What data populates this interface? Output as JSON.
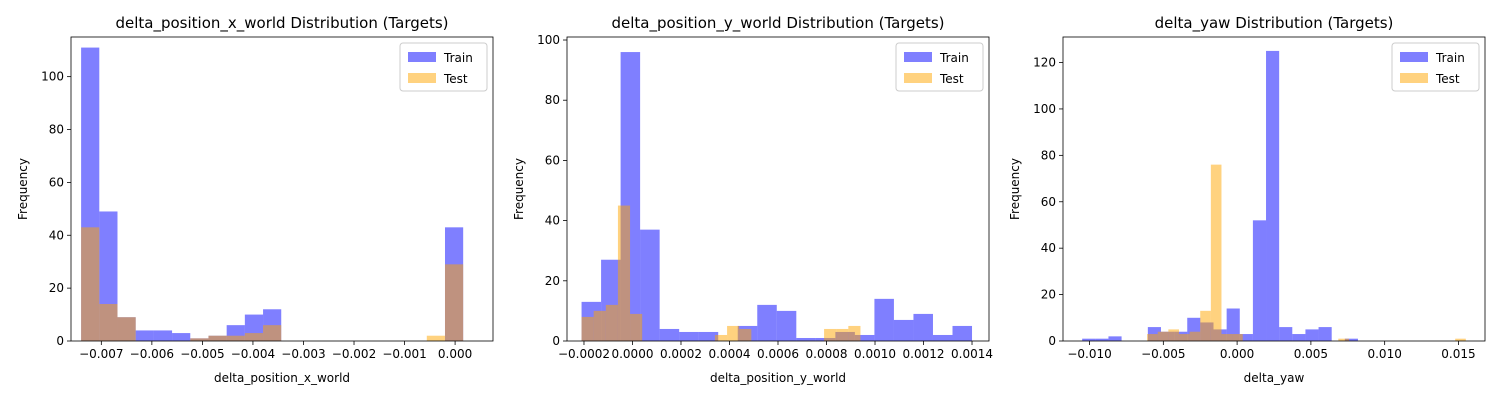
{
  "chart_data": [
    {
      "type": "bar",
      "title": "delta_position_x_world Distribution (Targets)",
      "xlabel": "delta_position_x_world",
      "ylabel": "Frequency",
      "xlim": [
        -0.0076,
        0.00075
      ],
      "ylim": [
        0,
        115
      ],
      "xticks": [
        -0.007,
        -0.006,
        -0.005,
        -0.004,
        -0.003,
        -0.002,
        -0.001,
        0.0
      ],
      "xtick_labels": [
        "−0.007",
        "−0.006",
        "−0.005",
        "−0.004",
        "−0.003",
        "−0.002",
        "−0.001",
        "0.000"
      ],
      "yticks": [
        0,
        20,
        40,
        60,
        80,
        100
      ],
      "ytick_labels": [
        "0",
        "20",
        "40",
        "60",
        "80",
        "100"
      ],
      "legend": "top-right",
      "series": [
        {
          "name": "Train",
          "color": "#0000ff",
          "alpha": 0.5,
          "bin_start": -0.0074,
          "bin_width": 0.00036,
          "values": [
            111,
            49,
            9,
            4,
            4,
            3,
            1,
            2,
            6,
            10,
            12,
            0,
            0,
            0,
            0,
            0,
            0,
            0,
            0,
            0,
            43
          ]
        },
        {
          "name": "Test",
          "color": "#ffa500",
          "alpha": 0.5,
          "bin_start": -0.0074,
          "bin_width": 0.00036,
          "values": [
            43,
            14,
            9,
            0,
            0,
            0,
            1,
            2,
            2,
            3,
            6,
            0,
            0,
            0,
            0,
            0,
            0,
            0,
            0,
            2,
            29
          ]
        }
      ]
    },
    {
      "type": "bar",
      "title": "delta_position_y_world Distribution (Targets)",
      "xlabel": "delta_position_y_world",
      "ylabel": "Frequency",
      "xlim": [
        -0.00027,
        0.00147
      ],
      "ylim": [
        0,
        101
      ],
      "xticks": [
        -0.0002,
        0.0,
        0.0002,
        0.0004,
        0.0006,
        0.0008,
        0.001,
        0.0012,
        0.0014
      ],
      "xtick_labels": [
        "−0.0002",
        "0.0000",
        "0.0002",
        "0.0004",
        "0.0006",
        "0.0008",
        "0.0010",
        "0.0012",
        "0.0014"
      ],
      "yticks": [
        0,
        20,
        40,
        60,
        80,
        100
      ],
      "ytick_labels": [
        "0",
        "20",
        "40",
        "60",
        "80",
        "100"
      ],
      "legend": "top-right",
      "series": [
        {
          "name": "Train",
          "color": "#0000ff",
          "alpha": 0.5,
          "bin_start": -0.00021,
          "bin_width": 8.05e-05,
          "values": [
            13,
            27,
            96,
            37,
            4,
            3,
            3,
            0,
            5,
            12,
            10,
            1,
            1,
            3,
            2,
            14,
            7,
            9,
            2,
            5
          ]
        },
        {
          "name": "Test",
          "color": "#ffa500",
          "alpha": 0.5,
          "bin_start": -0.00021,
          "bin_width": 5e-05,
          "values": [
            8,
            10,
            12,
            45,
            9,
            0,
            0,
            0,
            0,
            0,
            0,
            2,
            5,
            4,
            0,
            0,
            0,
            0,
            0,
            0,
            4,
            4,
            5,
            0,
            0
          ]
        }
      ]
    },
    {
      "type": "bar",
      "title": "delta_yaw Distribution (Targets)",
      "xlabel": "delta_yaw",
      "ylabel": "Frequency",
      "xlim": [
        -0.0118,
        0.0168
      ],
      "ylim": [
        0,
        131
      ],
      "xticks": [
        -0.01,
        -0.005,
        0.0,
        0.005,
        0.01,
        0.015
      ],
      "xtick_labels": [
        "−0.010",
        "−0.005",
        "0.000",
        "0.005",
        "0.010",
        "0.015"
      ],
      "yticks": [
        0,
        20,
        40,
        60,
        80,
        100,
        120
      ],
      "ytick_labels": [
        "0",
        "20",
        "40",
        "60",
        "80",
        "100",
        "120"
      ],
      "legend": "top-right",
      "series": [
        {
          "name": "Train",
          "color": "#0000ff",
          "alpha": 0.5,
          "bin_start": -0.0105,
          "bin_width": 0.00089,
          "values": [
            1,
            1,
            2,
            0,
            0,
            6,
            4,
            4,
            10,
            8,
            5,
            14,
            3,
            52,
            125,
            6,
            3,
            5,
            6,
            0,
            1,
            0
          ]
        },
        {
          "name": "Test",
          "color": "#ffa500",
          "alpha": 0.5,
          "bin_start": -0.0061,
          "bin_width": 0.00072,
          "values": [
            3,
            4,
            5,
            3,
            4,
            13,
            76,
            3,
            3,
            0,
            0,
            0,
            0,
            0,
            0,
            0,
            0,
            0,
            1,
            0,
            0,
            0,
            0,
            0,
            0,
            0,
            0,
            0,
            0,
            1
          ]
        }
      ]
    }
  ]
}
